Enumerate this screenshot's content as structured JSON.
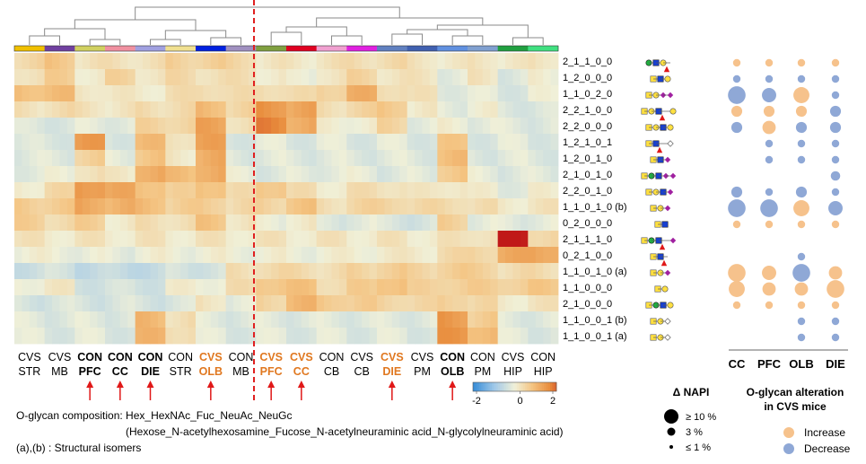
{
  "chart_data": {
    "type": "heatmap",
    "rows": [
      "2_1_1_0_0",
      "1_2_0_0_0",
      "1_1_0_2_0",
      "2_2_1_0_0",
      "2_2_0_0_0",
      "1_2_1_0_1",
      "1_2_0_1_0",
      "2_1_0_1_0",
      "2_2_0_1_0",
      "1_1_0_1_0 (b)",
      "0_2_0_0_0",
      "2_1_1_1_0",
      "0_2_1_0_0",
      "1_1_0_1_0 (a)",
      "1_1_0_0_0",
      "2_1_0_0_0",
      "1_1_0_0_1 (b)",
      "1_1_0_0_1 (a)"
    ],
    "columns": [
      {
        "group": "CVS",
        "region": "STR",
        "bold": false,
        "color": "#000000",
        "arrow": false,
        "bar": "#f0c000"
      },
      {
        "group": "CVS",
        "region": "MB",
        "bold": false,
        "color": "#000000",
        "arrow": false,
        "bar": "#7040a0"
      },
      {
        "group": "CON",
        "region": "PFC",
        "bold": true,
        "color": "#000000",
        "arrow": true,
        "bar": "#d0d060"
      },
      {
        "group": "CON",
        "region": "CC",
        "bold": true,
        "color": "#000000",
        "arrow": true,
        "bar": "#f090a0"
      },
      {
        "group": "CON",
        "region": "DIE",
        "bold": true,
        "color": "#000000",
        "arrow": true,
        "bar": "#a0a0e0"
      },
      {
        "group": "CON",
        "region": "STR",
        "bold": false,
        "color": "#000000",
        "arrow": false,
        "bar": "#f0e090"
      },
      {
        "group": "CVS",
        "region": "OLB",
        "bold": true,
        "color": "#e07820",
        "arrow": true,
        "bar": "#0020e0"
      },
      {
        "group": "CON",
        "region": "MB",
        "bold": false,
        "color": "#000000",
        "arrow": false,
        "bar": "#a090c0"
      },
      {
        "group": "CVS",
        "region": "PFC",
        "bold": true,
        "color": "#e07820",
        "arrow": true,
        "bar": "#80a040"
      },
      {
        "group": "CVS",
        "region": "CC",
        "bold": true,
        "color": "#e07820",
        "arrow": true,
        "bar": "#e00020"
      },
      {
        "group": "CON",
        "region": "CB",
        "bold": false,
        "color": "#000000",
        "arrow": false,
        "bar": "#f0a0d0"
      },
      {
        "group": "CVS",
        "region": "CB",
        "bold": false,
        "color": "#000000",
        "arrow": false,
        "bar": "#e020e0"
      },
      {
        "group": "CVS",
        "region": "DIE",
        "bold": true,
        "color": "#e07820",
        "arrow": true,
        "bar": "#6080c0"
      },
      {
        "group": "CVS",
        "region": "PM",
        "bold": false,
        "color": "#000000",
        "arrow": false,
        "bar": "#4060b0"
      },
      {
        "group": "CON",
        "region": "OLB",
        "bold": true,
        "color": "#000000",
        "arrow": true,
        "bar": "#6090e0"
      },
      {
        "group": "CON",
        "region": "PM",
        "bold": false,
        "color": "#000000",
        "arrow": false,
        "bar": "#80a0d0"
      },
      {
        "group": "CVS",
        "region": "HIP",
        "bold": false,
        "color": "#000000",
        "arrow": false,
        "bar": "#20a040"
      },
      {
        "group": "CON",
        "region": "HIP",
        "bold": false,
        "color": "#000000",
        "arrow": false,
        "bar": "#40e080"
      }
    ],
    "values": [
      [
        0.5,
        0.8,
        0.3,
        0.3,
        0.3,
        0.6,
        0.6,
        0.5,
        0.2,
        0.2,
        0.3,
        0.4,
        0.4,
        0.3,
        0.1,
        0.3,
        0.1,
        0.3
      ],
      [
        0.4,
        0.6,
        0.2,
        0.5,
        0.3,
        0.4,
        0.4,
        0.3,
        0.2,
        -0.1,
        0.3,
        0.5,
        0.3,
        0.2,
        -0.1,
        0.2,
        -0.2,
        0.0
      ],
      [
        1.0,
        0.9,
        0.3,
        0.1,
        0.2,
        0.3,
        0.5,
        0.3,
        0.5,
        0.3,
        0.7,
        1.1,
        0.5,
        0.2,
        -0.1,
        -0.2,
        -0.2,
        -0.1
      ],
      [
        0.3,
        0.4,
        0.3,
        0.2,
        0.4,
        0.4,
        1.0,
        0.5,
        1.6,
        1.3,
        0.4,
        0.5,
        0.8,
        0.1,
        -0.1,
        0.0,
        -0.2,
        -0.3
      ],
      [
        -0.3,
        -0.2,
        -0.2,
        -0.1,
        0.5,
        0.6,
        1.3,
        0.4,
        1.7,
        1.3,
        0.0,
        0.1,
        0.5,
        -0.1,
        0.0,
        -0.1,
        -0.2,
        -0.2
      ],
      [
        -0.3,
        -0.2,
        1.4,
        -0.2,
        0.9,
        0.4,
        1.3,
        -0.2,
        -0.2,
        -0.2,
        -0.2,
        -0.2,
        -0.2,
        -0.2,
        0.7,
        -0.2,
        -0.2,
        -0.2
      ],
      [
        -0.2,
        -0.2,
        0.6,
        -0.1,
        0.8,
        0.2,
        1.2,
        -0.2,
        -0.2,
        -0.2,
        -0.2,
        -0.2,
        -0.2,
        -0.2,
        0.9,
        -0.2,
        -0.2,
        -0.2
      ],
      [
        -0.1,
        -0.1,
        0.4,
        0.1,
        1.3,
        0.9,
        1.3,
        -0.1,
        -0.2,
        -0.2,
        -0.1,
        -0.1,
        -0.2,
        -0.2,
        0.8,
        -0.1,
        -0.2,
        -0.2
      ],
      [
        0.2,
        0.4,
        1.6,
        1.2,
        1.0,
        0.5,
        1.0,
        0.3,
        0.9,
        0.3,
        0.2,
        0.3,
        0.4,
        0.1,
        0.3,
        0.0,
        -0.1,
        0.0
      ],
      [
        0.7,
        0.7,
        1.3,
        1.1,
        1.0,
        0.6,
        0.7,
        0.4,
        0.6,
        0.8,
        0.4,
        0.5,
        0.6,
        0.4,
        0.5,
        0.3,
        0.2,
        0.2
      ],
      [
        0.6,
        0.5,
        0.6,
        0.2,
        0.3,
        0.4,
        0.8,
        0.3,
        -0.1,
        0.2,
        -0.3,
        -0.1,
        -0.3,
        -0.3,
        0.6,
        -0.1,
        -0.2,
        -0.1
      ],
      [
        0.2,
        0.2,
        0.2,
        0.2,
        0.2,
        0.2,
        0.2,
        0.2,
        0.2,
        0.2,
        0.2,
        0.2,
        0.2,
        0.2,
        0.2,
        0.4,
        2.5,
        0.6
      ],
      [
        0.0,
        0.0,
        -0.1,
        -0.1,
        0.0,
        0.0,
        0.0,
        0.0,
        0.0,
        0.0,
        0.0,
        0.1,
        0.1,
        0.2,
        0.4,
        0.6,
        1.2,
        1.4
      ],
      [
        -0.4,
        -0.4,
        -0.5,
        -0.6,
        -0.5,
        -0.4,
        -0.3,
        0.3,
        0.5,
        0.4,
        0.4,
        0.5,
        0.7,
        0.5,
        0.7,
        0.6,
        0.4,
        0.4
      ],
      [
        0.1,
        0.1,
        -0.3,
        -0.4,
        -0.3,
        0.0,
        0.1,
        0.3,
        0.9,
        0.8,
        0.5,
        0.6,
        1.0,
        0.5,
        0.7,
        0.6,
        0.7,
        0.7
      ],
      [
        -0.3,
        -0.3,
        -0.3,
        -0.3,
        -0.3,
        -0.3,
        0.3,
        -0.2,
        0.6,
        1.0,
        0.8,
        0.6,
        0.6,
        0.4,
        0.7,
        0.4,
        0.2,
        0.2
      ],
      [
        -0.2,
        -0.2,
        -0.2,
        -0.2,
        1.0,
        0.4,
        -0.2,
        -0.2,
        -0.2,
        -0.2,
        -0.2,
        -0.2,
        -0.2,
        -0.2,
        1.5,
        0.7,
        -0.2,
        -0.2
      ],
      [
        -0.2,
        -0.2,
        -0.2,
        -0.2,
        1.0,
        0.5,
        -0.2,
        -0.2,
        -0.2,
        -0.2,
        -0.2,
        -0.2,
        -0.2,
        -0.2,
        1.5,
        1.1,
        -0.2,
        -0.2
      ]
    ],
    "color_scale": {
      "min": -2,
      "mid": 0,
      "max": 2,
      "ticks": [
        "-2",
        "0",
        "2"
      ],
      "low_color": "#3a8ed8",
      "mid_color": "#f0f0d8",
      "high_color": "#c01818"
    },
    "bubble_columns": [
      "CC",
      "PFC",
      "OLB",
      "DIE"
    ],
    "bubbles": [
      [
        {
          "d": "increase",
          "s": 1
        },
        {
          "d": "increase",
          "s": 1
        },
        {
          "d": "increase",
          "s": 1
        },
        {
          "d": "increase",
          "s": 1
        }
      ],
      [
        {
          "d": "decrease",
          "s": 1
        },
        {
          "d": "decrease",
          "s": 1
        },
        {
          "d": "decrease",
          "s": 1
        },
        {
          "d": "decrease",
          "s": 1
        }
      ],
      [
        {
          "d": "decrease",
          "s": 10
        },
        {
          "d": "decrease",
          "s": 6
        },
        {
          "d": "increase",
          "s": 8
        },
        {
          "d": "decrease",
          "s": 1
        }
      ],
      [
        {
          "d": "increase",
          "s": 3
        },
        {
          "d": "increase",
          "s": 3
        },
        {
          "d": "increase",
          "s": 3
        },
        {
          "d": "decrease",
          "s": 3
        }
      ],
      [
        {
          "d": "decrease",
          "s": 3
        },
        {
          "d": "increase",
          "s": 5
        },
        {
          "d": "decrease",
          "s": 3
        },
        {
          "d": "decrease",
          "s": 3
        }
      ],
      [
        null,
        {
          "d": "decrease",
          "s": 1
        },
        {
          "d": "decrease",
          "s": 1
        },
        {
          "d": "decrease",
          "s": 1
        }
      ],
      [
        null,
        {
          "d": "decrease",
          "s": 1
        },
        {
          "d": "decrease",
          "s": 1
        },
        {
          "d": "decrease",
          "s": 1
        }
      ],
      [
        null,
        null,
        null,
        {
          "d": "decrease",
          "s": 2
        }
      ],
      [
        {
          "d": "decrease",
          "s": 3
        },
        {
          "d": "decrease",
          "s": 1
        },
        {
          "d": "decrease",
          "s": 3
        },
        {
          "d": "decrease",
          "s": 1
        }
      ],
      [
        {
          "d": "decrease",
          "s": 10
        },
        {
          "d": "decrease",
          "s": 10
        },
        {
          "d": "increase",
          "s": 8
        },
        {
          "d": "decrease",
          "s": 6
        }
      ],
      [
        {
          "d": "increase",
          "s": 1
        },
        {
          "d": "increase",
          "s": 1
        },
        {
          "d": "increase",
          "s": 1
        },
        {
          "d": "increase",
          "s": 1
        }
      ],
      [
        null,
        null,
        null,
        null
      ],
      [
        null,
        null,
        {
          "d": "decrease",
          "s": 1
        },
        null
      ],
      [
        {
          "d": "increase",
          "s": 10
        },
        {
          "d": "increase",
          "s": 6
        },
        {
          "d": "decrease",
          "s": 10
        },
        {
          "d": "increase",
          "s": 5
        }
      ],
      [
        {
          "d": "increase",
          "s": 8
        },
        {
          "d": "increase",
          "s": 5
        },
        {
          "d": "increase",
          "s": 5
        },
        {
          "d": "increase",
          "s": 10
        }
      ],
      [
        {
          "d": "increase",
          "s": 1
        },
        {
          "d": "increase",
          "s": 1
        },
        {
          "d": "increase",
          "s": 1
        },
        {
          "d": "increase",
          "s": 1
        }
      ],
      [
        null,
        null,
        {
          "d": "decrease",
          "s": 1
        },
        {
          "d": "decrease",
          "s": 1
        }
      ],
      [
        null,
        null,
        {
          "d": "decrease",
          "s": 1
        },
        {
          "d": "decrease",
          "s": 1
        }
      ]
    ],
    "bubble_colors": {
      "increase": "#f6c28c",
      "decrease": "#8fa8d6"
    },
    "glycans": [
      [
        "circle-green",
        "square-blue",
        "circle-yellow",
        "triangle-red"
      ],
      [
        "square-yellow",
        "square-blue",
        "circle-yellow"
      ],
      [
        "square-yellow",
        "circle-yellow",
        "diamond-purple",
        "diamond-purple"
      ],
      [
        "square-yellow",
        "circle-yellow",
        "square-blue",
        "triangle-red",
        "circle-yellow"
      ],
      [
        "square-yellow",
        "circle-yellow",
        "square-blue",
        "circle-yellow"
      ],
      [
        "square-yellow",
        "square-blue",
        "triangle-red",
        "diamond-white"
      ],
      [
        "square-yellow",
        "square-blue",
        "diamond-purple"
      ],
      [
        "square-yellow",
        "circle-green",
        "square-blue",
        "diamond-purple",
        "diamond-purple"
      ],
      [
        "square-yellow",
        "circle-yellow",
        "square-blue",
        "diamond-purple"
      ],
      [
        "square-yellow",
        "circle-yellow",
        "diamond-purple"
      ],
      [
        "square-yellow",
        "square-blue"
      ],
      [
        "square-yellow",
        "circle-green",
        "square-blue",
        "triangle-red",
        "diamond-purple"
      ],
      [
        "square-yellow",
        "square-blue",
        "triangle-red"
      ],
      [
        "square-yellow",
        "circle-yellow",
        "diamond-purple"
      ],
      [
        "square-yellow",
        "circle-yellow"
      ],
      [
        "square-yellow",
        "circle-green",
        "square-blue",
        "circle-yellow"
      ],
      [
        "square-yellow",
        "circle-yellow",
        "diamond-white"
      ],
      [
        "square-yellow",
        "circle-yellow",
        "diamond-white"
      ]
    ]
  },
  "colorbar": {
    "ticks": [
      "-2",
      "0",
      "2"
    ]
  },
  "bubble_header": [
    "CC",
    "PFC",
    "OLB",
    "DIE"
  ],
  "legend_napi": {
    "title": "Δ NAPI",
    "items": [
      "≥ 10 %",
      "3 %",
      "≤ 1 %"
    ]
  },
  "legend_alter": {
    "title_line1": "O-glycan alteration",
    "title_line2": "in CVS mice",
    "increase": "Increase",
    "decrease": "Decrease"
  },
  "footer": {
    "line1": "O-glycan composition: Hex_HexNAc_Fuc_NeuAc_NeuGc",
    "line2": "(Hexose_N-acetylhexosamine_Fucose_N-acetylneuraminic acid_N-glycolylneuraminic acid)",
    "line3": "(a),(b) : Structural isomers"
  }
}
